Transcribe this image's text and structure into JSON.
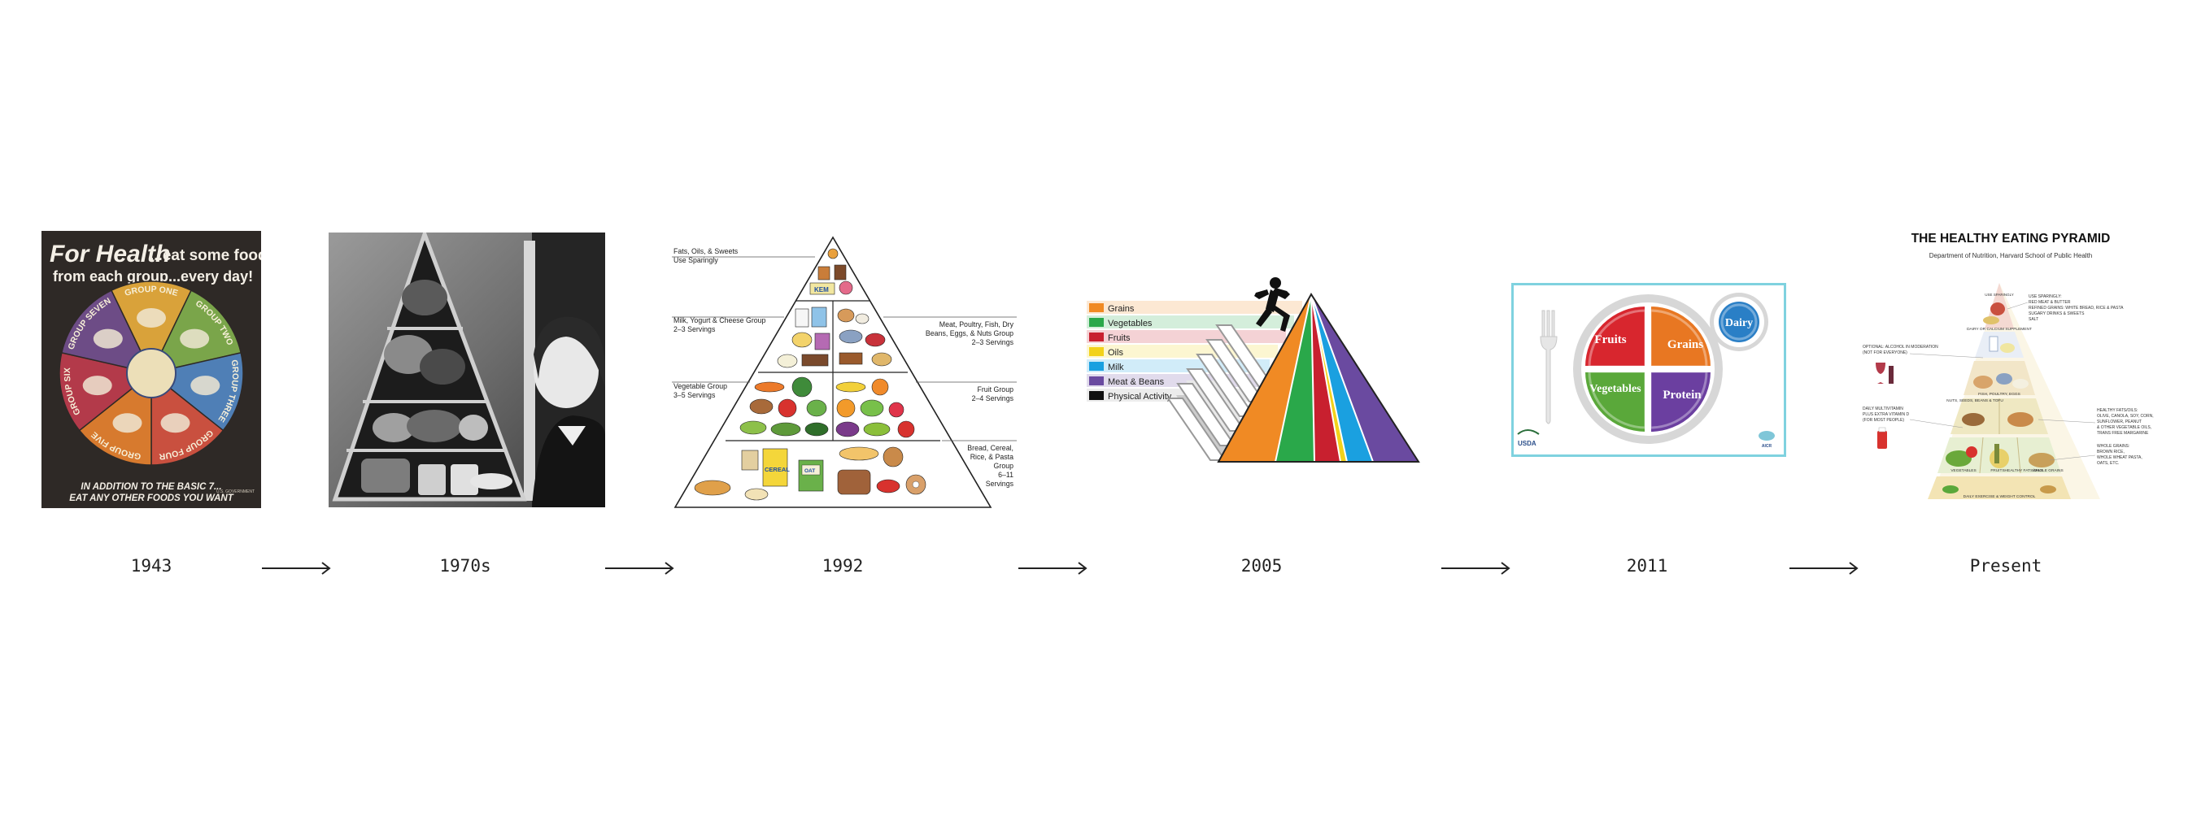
{
  "timeline": {
    "labels": [
      "1943",
      "1970s",
      "1992",
      "2005",
      "2011",
      "Present"
    ]
  },
  "poster1943": {
    "headline_1": "For Health",
    "headline_2": "...eat some food",
    "headline_3": "from each group...every day!",
    "groups": [
      "GROUP ONE",
      "GROUP TWO",
      "GROUP THREE",
      "GROUP FOUR",
      "GROUP FIVE",
      "GROUP SIX",
      "GROUP SEVEN"
    ],
    "footer_1": "IN ADDITION TO THE BASIC 7...",
    "footer_2": "EAT ANY OTHER FOODS YOU WANT",
    "credit": "U.S. GOVERNMENT",
    "colors": [
      "#d9a23a",
      "#7aa54a",
      "#4f7fb6",
      "#c9503f",
      "#d77a2e",
      "#b33a4a",
      "#6d4c86"
    ]
  },
  "pyramid1992": {
    "left_labels": [
      {
        "l1": "Fats, Oils, & Sweets",
        "l2": "Use Sparingly"
      },
      {
        "l1": "Milk, Yogurt & Cheese Group",
        "l2": "2–3 Servings"
      },
      {
        "l1": "Vegetable Group",
        "l2": "3–5 Servings"
      }
    ],
    "right_labels": [
      {
        "l1": "Meat, Poultry, Fish, Dry",
        "l2": "Beans, Eggs, & Nuts Group",
        "l3": "2–3 Servings"
      },
      {
        "l1": "Fruit Group",
        "l2": "2–4 Servings"
      },
      {
        "l1": "Bread, Cereal,",
        "l2": "Rice, & Pasta",
        "l3": "Group",
        "l4": "6–11",
        "l5": "Servings"
      }
    ],
    "item_labels": {
      "cereal": "CEREAL",
      "oat": "OAT",
      "kem": "KEM"
    }
  },
  "mypyramid2005": {
    "legend": [
      {
        "label": "Grains",
        "color": "#f08a24"
      },
      {
        "label": "Vegetables",
        "color": "#2aa84a"
      },
      {
        "label": "Fruits",
        "color": "#c8202f"
      },
      {
        "label": "Oils",
        "color": "#f2d21b"
      },
      {
        "label": "Milk",
        "color": "#1aa0e0"
      },
      {
        "label": "Meat & Beans",
        "color": "#6a4aa0"
      },
      {
        "label": "Physical Activity",
        "color": "#111111"
      }
    ]
  },
  "myplate2011": {
    "sections": [
      {
        "label": "Fruits",
        "color": "#d8262e"
      },
      {
        "label": "Grains",
        "color": "#e87722"
      },
      {
        "label": "Vegetables",
        "color": "#5aa83a"
      },
      {
        "label": "Protein",
        "color": "#6b3fa0"
      }
    ],
    "dairy": {
      "label": "Dairy",
      "color": "#2a7fc6"
    },
    "usda": "USDA",
    "aicr": "AICR",
    "frame_color": "#7fd2df"
  },
  "healthy_pyramid": {
    "title": "THE HEALTHY EATING PYRAMID",
    "subtitle": "Department of Nutrition, Harvard School of Public Health",
    "tiers": [
      "USE SPARINGLY",
      "DAIRY OR CALCIUM SUPPLEMENT",
      "FISH, POULTRY, EGGS",
      "NUTS, SEEDS, BEANS & TOFU",
      "VEGETABLES",
      "FRUITS",
      "HEALTHY FATS/OILS",
      "WHOLE GRAINS",
      "DAILY EXERCISE & WEIGHT CONTROL"
    ],
    "left_notes": [
      {
        "l1": "OPTIONAL: ALCOHOL IN MODERATION",
        "l2": "(NOT FOR EVERYONE)"
      },
      {
        "l1": "DAILY MULTIVITAMIN",
        "l2": "PLUS EXTRA VITAMIN D",
        "l3": "(FOR MOST PEOPLE)"
      }
    ],
    "right_notes": [
      {
        "l1": "USE SPARINGLY:",
        "l2": "RED MEAT & BUTTER",
        "l3": "REFINED GRAINS: WHITE BREAD, RICE & PASTA",
        "l4": "SUGARY DRINKS & SWEETS",
        "l5": "SALT"
      },
      {
        "l1": "HEALTHY FATS/OILS:",
        "l2": "OLIVE, CANOLA, SOY, CORN,",
        "l3": "SUNFLOWER, PEANUT",
        "l4": "& OTHER VEGETABLE OILS,",
        "l5": "TRANS FREE MARGARINE"
      },
      {
        "l1": "WHOLE GRAINS:",
        "l2": "BROWN RICE,",
        "l3": "WHOLE WHEAT PASTA,",
        "l4": "OATS, ETC."
      }
    ]
  }
}
